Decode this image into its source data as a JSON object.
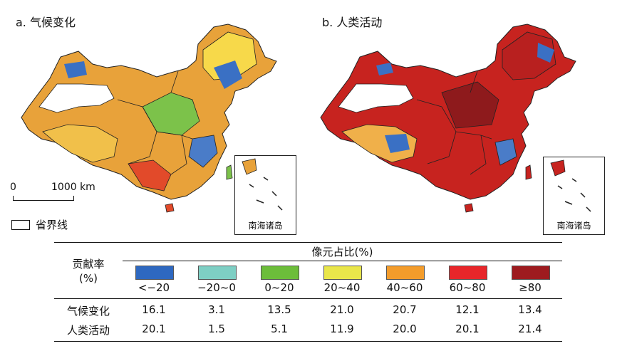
{
  "panels": [
    {
      "title": "a. 气候变化"
    },
    {
      "title": "b. 人类活动"
    }
  ],
  "inset_label": "南海诸岛",
  "scale_bar": {
    "left": "0",
    "right": "1000 km"
  },
  "boundary_legend": "省界线",
  "table": {
    "row_header_line1": "贡献率",
    "row_header_line2": "(%)",
    "column_title": "像元占比(%)",
    "categories": [
      "<−20",
      "−20~0",
      "0~20",
      "20~40",
      "40~60",
      "60~80",
      "≥80"
    ],
    "colors": [
      "#2e68c0",
      "#7ecfc4",
      "#6cbd3a",
      "#e9e64a",
      "#f39c2b",
      "#e8262a",
      "#9e1b1f"
    ],
    "rows": [
      {
        "label": "气候变化",
        "values": [
          "16.1",
          "3.1",
          "13.5",
          "21.0",
          "20.7",
          "12.1",
          "13.4"
        ]
      },
      {
        "label": "人类活动",
        "values": [
          "20.1",
          "1.5",
          "5.1",
          "11.9",
          "20.0",
          "20.1",
          "21.4"
        ]
      }
    ]
  }
}
